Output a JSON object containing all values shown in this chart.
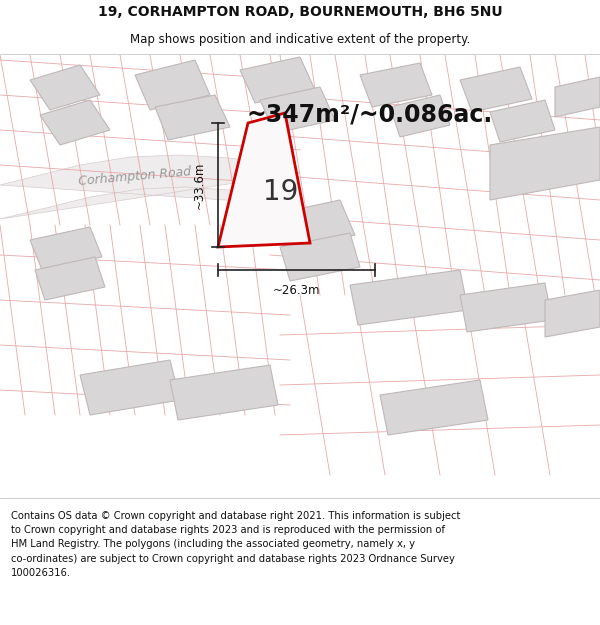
{
  "title_line1": "19, CORHAMPTON ROAD, BOURNEMOUTH, BH6 5NU",
  "title_line2": "Map shows position and indicative extent of the property.",
  "area_label": "~347m²/~0.086ac.",
  "property_number": "19",
  "dim_width": "~26.3m",
  "dim_height": "~33.6m",
  "road_label": "Corhampton Road",
  "footer_text": "Contains OS data © Crown copyright and database right 2021. This information is subject\nto Crown copyright and database rights 2023 and is reproduced with the permission of\nHM Land Registry. The polygons (including the associated geometry, namely x, y\nco-ordinates) are subject to Crown copyright and database rights 2023 Ordnance Survey\n100026316.",
  "map_bg": "#f5f3f3",
  "building_fill": "#d8d6d6",
  "building_edge": "#c0b8b8",
  "plot_line_color": "#e8a8a8",
  "highlight_fill": "#faf8f8",
  "highlight_edge": "#cc0000",
  "dim_line_color": "#222222",
  "road_fill": "#f0edee",
  "road_edge": "#ddd0d0",
  "title_fontsize": 10,
  "subtitle_fontsize": 8.5,
  "area_fontsize": 17,
  "property_num_fontsize": 20,
  "dim_fontsize": 8.5,
  "road_fontsize": 9,
  "footer_fontsize": 7.2
}
